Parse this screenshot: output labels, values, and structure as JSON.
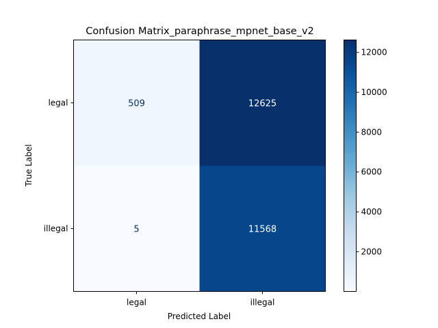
{
  "chart_data": {
    "type": "heatmap",
    "title": "Confusion Matrix_paraphrase_mpnet_base_v2",
    "xlabel": "Predicted Label",
    "ylabel": "True Label",
    "x_categories": [
      "legal",
      "illegal"
    ],
    "y_categories": [
      "legal",
      "illegal"
    ],
    "values": [
      [
        509,
        12625
      ],
      [
        5,
        11568
      ]
    ],
    "colormap": "Blues",
    "colorbar": {
      "ticks": [
        2000,
        4000,
        6000,
        8000,
        10000,
        12000
      ],
      "range": [
        5,
        12625
      ]
    },
    "grid": false
  }
}
